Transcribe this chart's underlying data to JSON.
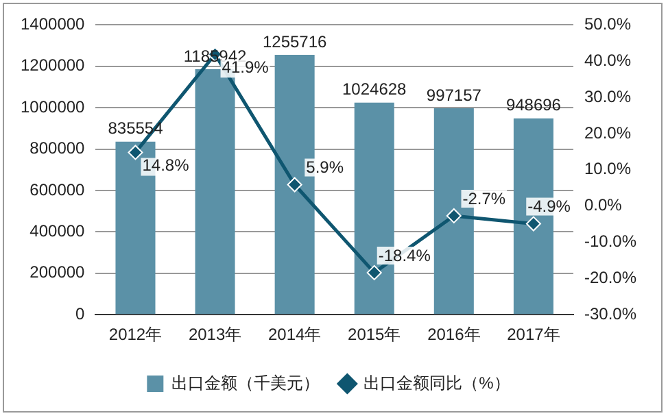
{
  "chart_data": {
    "type": "bar",
    "categories": [
      "2012年",
      "2013年",
      "2014年",
      "2015年",
      "2016年",
      "2017年"
    ],
    "series": [
      {
        "name": "出口金额（千美元）",
        "color": "#5b91a7",
        "values": [
          835554,
          1185942,
          1255716,
          1024628,
          997157,
          948696
        ],
        "value_labels": [
          "835554",
          "1185942",
          "1255716",
          "1024628",
          "997157",
          "948696"
        ]
      },
      {
        "name": "出口金额同比（%）",
        "type": "line",
        "axis": "y2",
        "color": "#0f5670",
        "values": [
          14.8,
          41.9,
          5.9,
          -18.4,
          -2.7,
          -4.9
        ],
        "value_labels": [
          "14.8%",
          "41.9%",
          "5.9%",
          "-18.4%",
          "-2.7%",
          "-4.9%"
        ]
      }
    ],
    "ylim": [
      0,
      1400000
    ],
    "yticks": [
      0,
      200000,
      400000,
      600000,
      800000,
      1000000,
      1200000,
      1400000
    ],
    "y2lim": [
      -30,
      50
    ],
    "y2ticks": [
      {
        "value": -30,
        "label": "-30.0%"
      },
      {
        "value": -20,
        "label": "-20.0%"
      },
      {
        "value": -10,
        "label": "-10.0%"
      },
      {
        "value": 0,
        "label": "0.0%"
      },
      {
        "value": 10,
        "label": "10.0%"
      },
      {
        "value": 20,
        "label": "20.0%"
      },
      {
        "value": 30,
        "label": "30.0%"
      },
      {
        "value": 40,
        "label": "40.0%"
      },
      {
        "value": 50,
        "label": "50.0%"
      }
    ],
    "grid": "y",
    "legend": "bottom",
    "marker": "diamond",
    "line_style": "solid"
  }
}
